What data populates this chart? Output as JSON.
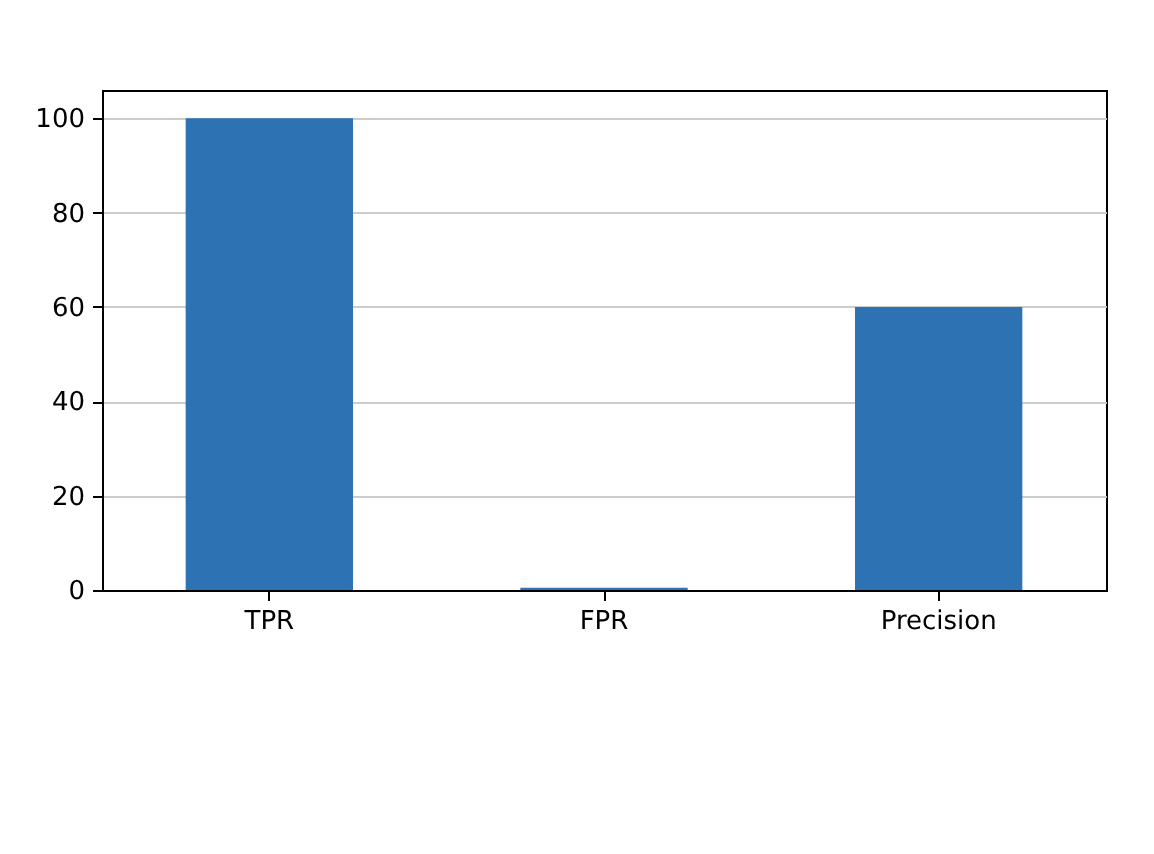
{
  "chart_data": {
    "type": "bar",
    "categories": [
      "TPR",
      "FPR",
      "Precision"
    ],
    "values": [
      100,
      0.5,
      60
    ],
    "color": "#2d72b3",
    "ylim": [
      0,
      106
    ],
    "yticks": [
      0,
      20,
      40,
      60,
      80,
      100
    ],
    "grid": "y"
  }
}
